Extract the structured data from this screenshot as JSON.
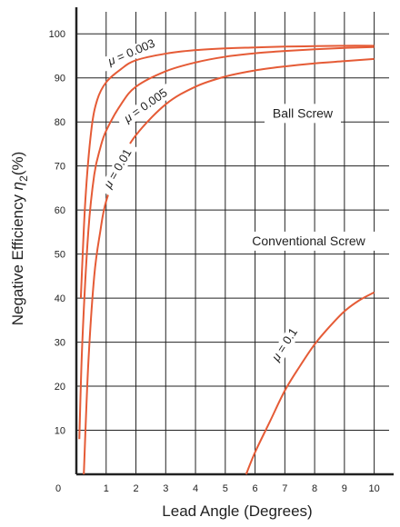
{
  "chart_data": {
    "type": "line",
    "xlabel": "Lead Angle (Degrees)",
    "ylabel_main": "Negative Efficiency ",
    "ylabel_symbol": "η",
    "ylabel_sub": "2",
    "ylabel_unit": "(%)",
    "xlim": [
      0,
      10.5
    ],
    "ylim": [
      0,
      105
    ],
    "x_ticks": [
      1,
      2,
      3,
      4,
      5,
      6,
      7,
      8,
      9,
      10
    ],
    "y_ticks": [
      10,
      20,
      30,
      40,
      50,
      60,
      70,
      80,
      90,
      100
    ],
    "origin_label": "0",
    "grid": true,
    "annotations": [
      {
        "text": "Ball Screw",
        "x": 7.6,
        "y": 81
      },
      {
        "text": "Conventional Screw",
        "x": 7.8,
        "y": 52
      }
    ],
    "series": [
      {
        "name": "μ = 0.003",
        "mu_symbol": "μ",
        "mu_value": "= 0.003",
        "label_at": {
          "x": 1.9,
          "y": 95,
          "angle": -23
        },
        "points": [
          [
            0.15,
            40
          ],
          [
            0.3,
            62
          ],
          [
            0.5,
            78
          ],
          [
            0.7,
            85
          ],
          [
            1.0,
            89
          ],
          [
            1.5,
            92
          ],
          [
            2.0,
            94
          ],
          [
            3.0,
            95.5
          ],
          [
            4.0,
            96.3
          ],
          [
            5.0,
            96.7
          ],
          [
            6.0,
            96.9
          ],
          [
            7.0,
            97.1
          ],
          [
            8.0,
            97.2
          ],
          [
            9.0,
            97.3
          ],
          [
            10.0,
            97.3
          ]
        ]
      },
      {
        "name": "μ = 0.005",
        "mu_symbol": "μ",
        "mu_value": "= 0.005",
        "label_at": {
          "x": 2.4,
          "y": 83,
          "angle": -35
        },
        "points": [
          [
            0.1,
            8
          ],
          [
            0.2,
            30
          ],
          [
            0.4,
            55
          ],
          [
            0.6,
            68
          ],
          [
            0.8,
            74
          ],
          [
            1.0,
            78
          ],
          [
            1.5,
            84
          ],
          [
            2.0,
            88
          ],
          [
            3.0,
            91.5
          ],
          [
            4.0,
            93.5
          ],
          [
            5.0,
            94.8
          ],
          [
            6.0,
            95.6
          ],
          [
            7.0,
            96.1
          ],
          [
            8.0,
            96.5
          ],
          [
            9.0,
            96.8
          ],
          [
            10.0,
            97
          ]
        ]
      },
      {
        "name": "μ = 0.01",
        "mu_symbol": "μ",
        "mu_value": "= 0.01",
        "label_at": {
          "x": 1.5,
          "y": 69,
          "angle": -60
        },
        "points": [
          [
            0.25,
            0
          ],
          [
            0.4,
            25
          ],
          [
            0.6,
            45
          ],
          [
            0.8,
            55
          ],
          [
            1.0,
            62
          ],
          [
            1.5,
            71
          ],
          [
            2.0,
            77
          ],
          [
            3.0,
            84
          ],
          [
            4.0,
            88
          ],
          [
            5.0,
            90.3
          ],
          [
            6.0,
            91.7
          ],
          [
            7.0,
            92.6
          ],
          [
            8.0,
            93.3
          ],
          [
            9.0,
            93.8
          ],
          [
            10.0,
            94.3
          ]
        ]
      },
      {
        "name": "μ = 0.1",
        "mu_symbol": "μ",
        "mu_value": "= 0.1",
        "label_at": {
          "x": 7.1,
          "y": 29,
          "angle": -57
        },
        "points": [
          [
            5.7,
            0
          ],
          [
            6.0,
            5
          ],
          [
            6.5,
            12
          ],
          [
            7.0,
            19
          ],
          [
            7.5,
            24.5
          ],
          [
            8.0,
            29.5
          ],
          [
            8.5,
            33.5
          ],
          [
            9.0,
            37
          ],
          [
            9.5,
            39.5
          ],
          [
            10.0,
            41.3
          ]
        ]
      }
    ]
  }
}
